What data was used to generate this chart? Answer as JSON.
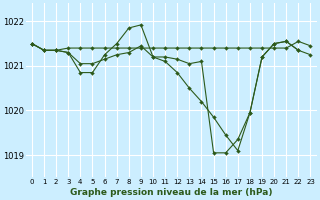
{
  "bg_color": "#cceeff",
  "grid_color": "#ffffff",
  "line_color": "#2d5a1b",
  "xlabel": "Graphe pression niveau de la mer (hPa)",
  "ylim": [
    1018.5,
    1022.4
  ],
  "xlim": [
    -0.5,
    23.5
  ],
  "yticks": [
    1019,
    1020,
    1021,
    1022
  ],
  "xticks": [
    0,
    1,
    2,
    3,
    4,
    5,
    6,
    7,
    8,
    9,
    10,
    11,
    12,
    13,
    14,
    15,
    16,
    17,
    18,
    19,
    20,
    21,
    22,
    23
  ],
  "line1_x": [
    0,
    1,
    2,
    3,
    4,
    5,
    6,
    7,
    8,
    9,
    10,
    11,
    12,
    13,
    14,
    15,
    16,
    17,
    18,
    19,
    20,
    21,
    22,
    23
  ],
  "line1_y": [
    1021.5,
    1021.35,
    1021.35,
    1021.4,
    1021.4,
    1021.4,
    1021.4,
    1021.4,
    1021.4,
    1021.4,
    1021.4,
    1021.4,
    1021.4,
    1021.4,
    1021.4,
    1021.4,
    1021.4,
    1021.4,
    1021.4,
    1021.4,
    1021.4,
    1021.4,
    1021.55,
    1021.45
  ],
  "line2_x": [
    0,
    1,
    2,
    3,
    4,
    5,
    6,
    7,
    8,
    9,
    10,
    11,
    12,
    13,
    14,
    15,
    16,
    17,
    18,
    19,
    20,
    21,
    22
  ],
  "line2_y": [
    1021.5,
    1021.35,
    1021.35,
    1021.3,
    1020.85,
    1020.85,
    1021.25,
    1021.5,
    1021.85,
    1021.92,
    1021.2,
    1021.2,
    1021.15,
    1021.05,
    1021.1,
    1019.05,
    1019.05,
    1019.35,
    1019.95,
    1021.2,
    1021.5,
    1021.55,
    1021.35
  ],
  "line3_x": [
    0,
    1,
    2,
    3,
    4,
    5,
    6,
    7,
    8,
    9,
    10,
    11,
    12,
    13,
    14,
    15,
    16,
    17,
    18,
    19,
    20,
    21,
    22,
    23
  ],
  "line3_y": [
    1021.5,
    1021.35,
    1021.35,
    1021.3,
    1021.05,
    1021.05,
    1021.15,
    1021.25,
    1021.3,
    1021.45,
    1021.2,
    1021.1,
    1020.85,
    1020.5,
    1020.2,
    1019.85,
    1019.45,
    1019.1,
    1019.95,
    1021.2,
    1021.5,
    1021.55,
    1021.35,
    1021.25
  ]
}
